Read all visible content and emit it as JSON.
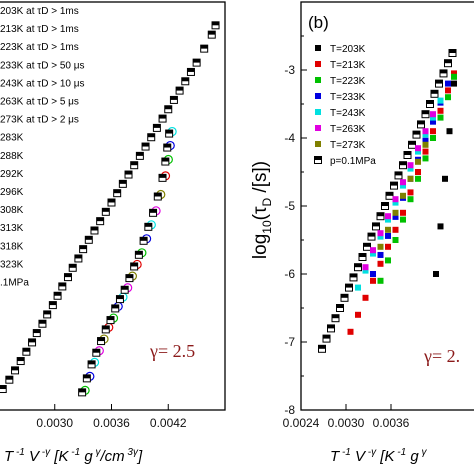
{
  "colors": {
    "gamma_text": "#8b1a1a",
    "pressure_marker": "#000000"
  },
  "chart_data": [
    {
      "type": "scatter",
      "panel_label": "",
      "xlabel": "T -1 V -γ [K -1 g γ/cm 3γ]",
      "xlim": [
        0.0024,
        0.0048
      ],
      "x_ticks": [
        "0.0030",
        "0.0036",
        "0.0042"
      ],
      "y_ticks": [],
      "annotation": "γ= 2.5",
      "legend": [
        "203K at  τD > 1ms",
        "213K at  τD > 1ms",
        "223K at  τD > 1ms",
        "233K at  τD > 50 μs",
        "243K at  τD > 10 μs",
        "263K at  τD > 5 μs",
        "273K at  τD > 2 μs",
        "283K",
        "288K",
        "292K",
        "296K",
        "308K",
        "313K",
        "318K",
        "323K",
        ".1MPa"
      ],
      "legend_colors": [
        "#000000",
        "#e00000",
        "#00c000",
        "#0000e0",
        "#00e0e0",
        "#e000e0",
        "#808000",
        "#000000",
        "#000000",
        "#000000",
        "#000000",
        "#000000",
        "#000000",
        "#000000",
        "#000000",
        "#000000"
      ],
      "series": [
        {
          "name": ".1MPa",
          "color": "#000000",
          "marker": "half-square",
          "x": [
            0.00245,
            0.00252,
            0.00258,
            0.00264,
            0.0027,
            0.00276,
            0.00281,
            0.00287,
            0.00292,
            0.00298,
            0.00303,
            0.00308,
            0.00314,
            0.00319,
            0.00325,
            0.0033,
            0.00336,
            0.00342,
            0.00348,
            0.00354,
            0.0036,
            0.00366,
            0.00372,
            0.00378,
            0.00384,
            0.0039,
            0.00396,
            0.00402,
            0.00408,
            0.00414,
            0.0042,
            0.00426,
            0.00432,
            0.00438,
            0.00444,
            0.0045,
            0.00458,
            0.00466,
            0.0047
          ],
          "y": [
            4.4,
            4.8,
            5.2,
            5.6,
            6.0,
            6.4,
            6.8,
            7.2,
            7.6,
            8.0,
            8.4,
            8.8,
            9.2,
            9.6,
            10.0,
            10.4,
            10.8,
            11.2,
            11.6,
            12.0,
            12.4,
            12.8,
            13.2,
            13.6,
            14.0,
            14.4,
            14.8,
            15.2,
            15.6,
            16.0,
            16.4,
            16.8,
            17.2,
            17.6,
            18.0,
            18.4,
            19.0,
            19.6,
            20.0
          ]
        },
        {
          "name": "203K-323K",
          "color": "#000000",
          "marker": "mixed",
          "x": [
            0.0033,
            0.00335,
            0.0034,
            0.00345,
            0.0035,
            0.00355,
            0.0036,
            0.00365,
            0.0037,
            0.00375,
            0.0038,
            0.00385,
            0.0039,
            0.00395,
            0.004,
            0.00405,
            0.0041,
            0.00415,
            0.00418,
            0.0042,
            0.00422
          ],
          "y": [
            4.3,
            4.9,
            5.5,
            6.0,
            6.5,
            7.0,
            7.4,
            7.9,
            8.3,
            8.7,
            9.2,
            9.7,
            10.2,
            10.8,
            11.4,
            12.0,
            12.7,
            13.5,
            14.2,
            14.8,
            15.4
          ]
        }
      ]
    },
    {
      "type": "scatter",
      "panel_label": "(b)",
      "xlabel": "T -1 V -γ [K -1 g γ/cm 3γ]",
      "ylabel": "log10(τD /[s])",
      "xlim": [
        0.0024,
        0.0048
      ],
      "ylim": [
        -8,
        -2
      ],
      "x_ticks": [
        "0.0024",
        "0.0030",
        "0.0036"
      ],
      "y_ticks": [
        "-8",
        "-7",
        "-6",
        "-5",
        "-4",
        "-3"
      ],
      "annotation": "γ= 2.",
      "legend": [
        "T=203K",
        "T=213K",
        "T=223K",
        "T=233K",
        "T=243K",
        "T=263K",
        "T=273K",
        "p=0.1MPa"
      ],
      "legend_colors": [
        "#000000",
        "#e00000",
        "#00c000",
        "#0000e0",
        "#00e0e0",
        "#e000e0",
        "#808000",
        "#000000"
      ],
      "series": [
        {
          "name": "p=0.1MPa",
          "color": "#000000",
          "marker": "half-square",
          "x": [
            0.00268,
            0.00274,
            0.0028,
            0.00286,
            0.00292,
            0.00298,
            0.00304,
            0.0031,
            0.00316,
            0.00322,
            0.00328,
            0.00334,
            0.0034,
            0.00346,
            0.00352,
            0.00358,
            0.00364,
            0.0037,
            0.00376,
            0.00382,
            0.00388,
            0.00394,
            0.004,
            0.00406,
            0.00412,
            0.00418,
            0.00424,
            0.0043,
            0.00436,
            0.00442
          ],
          "y": [
            -7.1,
            -6.95,
            -6.8,
            -6.65,
            -6.5,
            -6.35,
            -6.2,
            -6.05,
            -5.9,
            -5.75,
            -5.6,
            -5.45,
            -5.3,
            -5.15,
            -5.0,
            -4.85,
            -4.7,
            -4.55,
            -4.4,
            -4.25,
            -4.1,
            -3.95,
            -3.8,
            -3.65,
            -3.5,
            -3.35,
            -3.2,
            -3.05,
            -2.9,
            -2.75
          ]
        },
        {
          "name": "T=203K",
          "color": "#000000",
          "marker": "square",
          "x": [
            0.0042,
            0.00426,
            0.00432,
            0.00438,
            0.00444
          ],
          "y": [
            -6.0,
            -5.3,
            -4.6,
            -3.9,
            -3.2
          ]
        },
        {
          "name": "T=213K",
          "color": "#e00000",
          "marker": "square",
          "x": [
            0.00306,
            0.00316,
            0.00326,
            0.00336,
            0.00346,
            0.00356,
            0.00366,
            0.00376,
            0.00386,
            0.00396,
            0.00406,
            0.00416,
            0.00426,
            0.00436,
            0.00444
          ],
          "y": [
            -6.85,
            -6.6,
            -6.35,
            -6.1,
            -5.85,
            -5.6,
            -5.35,
            -5.1,
            -4.8,
            -4.5,
            -4.2,
            -3.9,
            -3.6,
            -3.3,
            -3.05
          ]
        },
        {
          "name": "T=223K",
          "color": "#00c000",
          "marker": "square",
          "x": [
            0.00346,
            0.00356,
            0.00366,
            0.00376,
            0.00386,
            0.00396,
            0.00406,
            0.00416,
            0.00426,
            0.00436,
            0.00444
          ],
          "y": [
            -6.1,
            -5.8,
            -5.5,
            -5.2,
            -4.9,
            -4.6,
            -4.3,
            -4.0,
            -3.7,
            -3.4,
            -3.1
          ]
        },
        {
          "name": "T=233K",
          "color": "#0000e0",
          "marker": "square",
          "x": [
            0.00336,
            0.00346,
            0.00356,
            0.00366,
            0.00376,
            0.00386,
            0.00396,
            0.00406,
            0.00416,
            0.00426,
            0.00436
          ],
          "y": [
            -6.0,
            -5.72,
            -5.44,
            -5.16,
            -4.88,
            -4.6,
            -4.32,
            -4.04,
            -3.76,
            -3.48,
            -3.2
          ]
        },
        {
          "name": "T=243K",
          "color": "#00e0e0",
          "marker": "square",
          "x": [
            0.00316,
            0.00326,
            0.00336,
            0.00346,
            0.00356,
            0.00366,
            0.00376,
            0.00386,
            0.00396,
            0.00406,
            0.00416,
            0.00426
          ],
          "y": [
            -6.2,
            -5.95,
            -5.7,
            -5.45,
            -5.2,
            -4.95,
            -4.7,
            -4.45,
            -4.2,
            -3.95,
            -3.7,
            -3.45
          ]
        },
        {
          "name": "T=263K",
          "color": "#e000e0",
          "marker": "square",
          "x": [
            0.00326,
            0.00336,
            0.00346,
            0.00356,
            0.00366,
            0.00376,
            0.00386,
            0.00396,
            0.00406,
            0.00416
          ],
          "y": [
            -5.9,
            -5.65,
            -5.4,
            -5.15,
            -4.9,
            -4.65,
            -4.4,
            -4.15,
            -3.9,
            -3.65
          ]
        },
        {
          "name": "T=273K",
          "color": "#808000",
          "marker": "square",
          "x": [
            0.00346,
            0.00356,
            0.00366,
            0.00376,
            0.00386,
            0.00396,
            0.00406
          ],
          "y": [
            -5.6,
            -5.35,
            -5.1,
            -4.85,
            -4.6,
            -4.35,
            -4.1
          ]
        }
      ]
    }
  ]
}
